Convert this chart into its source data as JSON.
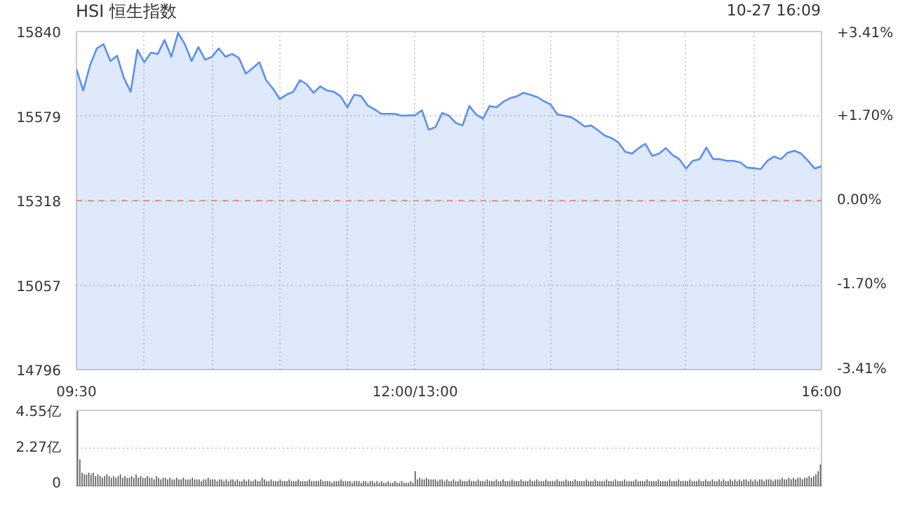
{
  "chart_data": [
    {
      "type": "area",
      "title": "HSI 恒生指数",
      "annotations": [
        "10-27 16:09"
      ],
      "categories": [
        "09:30",
        null,
        null,
        null,
        null,
        null,
        null,
        null,
        null,
        null,
        null,
        null,
        null,
        null,
        null,
        null,
        null,
        null,
        null,
        null,
        null,
        null,
        null,
        null,
        null,
        null,
        null,
        null,
        null,
        null,
        null,
        null,
        null,
        null,
        null,
        null,
        null,
        null,
        null,
        null,
        null,
        null,
        null,
        null,
        null,
        null,
        null,
        null,
        null,
        null,
        "12:00/13:00",
        null,
        null,
        null,
        null,
        null,
        null,
        null,
        null,
        null,
        null,
        null,
        null,
        null,
        null,
        null,
        null,
        null,
        null,
        null,
        null,
        null,
        null,
        null,
        null,
        null,
        null,
        null,
        null,
        null,
        null,
        null,
        null,
        null,
        null,
        null,
        null,
        null,
        null,
        null,
        null,
        null,
        null,
        null,
        null,
        null,
        null,
        null,
        null,
        null,
        null,
        null,
        null,
        null,
        null,
        null,
        null,
        null,
        null,
        null,
        "16:00"
      ],
      "series": [
        {
          "color": "#5b8ff0",
          "values": [
            15723,
            15658,
            15736,
            15788,
            15801,
            15749,
            15765,
            15697,
            15654,
            15784,
            15745,
            15775,
            15771,
            15814,
            15762,
            15836,
            15801,
            15749,
            15792,
            15753,
            15762,
            15788,
            15762,
            15771,
            15758,
            15710,
            15727,
            15745,
            15690,
            15664,
            15632,
            15645,
            15654,
            15690,
            15677,
            15651,
            15671,
            15658,
            15654,
            15640,
            15606,
            15645,
            15641,
            15612,
            15600,
            15586,
            15586,
            15586,
            15580,
            15581,
            15582,
            15597,
            15537,
            15545,
            15589,
            15580,
            15558,
            15550,
            15610,
            15584,
            15571,
            15610,
            15606,
            15623,
            15634,
            15640,
            15651,
            15645,
            15638,
            15625,
            15615,
            15584,
            15580,
            15576,
            15563,
            15547,
            15550,
            15535,
            15519,
            15511,
            15498,
            15469,
            15463,
            15480,
            15493,
            15456,
            15463,
            15480,
            15459,
            15446,
            15417,
            15441,
            15446,
            15482,
            15446,
            15446,
            15441,
            15441,
            15436,
            15420,
            15418,
            15415,
            15441,
            15454,
            15446,
            15466,
            15472,
            15463,
            15441,
            15417,
            15424
          ]
        }
      ],
      "ylim": [
        14796,
        15840
      ],
      "yticks": [
        14796,
        15057,
        15318,
        15579,
        15840
      ],
      "y2lim": [
        -3.41,
        3.41
      ],
      "y2ticks": [
        {
          "value": -3.41,
          "label": "-3.41%"
        },
        {
          "value": -1.7,
          "label": "-1.70%"
        },
        {
          "value": 0,
          "label": "0.00%"
        },
        {
          "value": 1.7,
          "label": "+1.70%"
        },
        {
          "value": 3.41,
          "label": "+3.41%"
        }
      ],
      "ref_lines": [
        {
          "axis": "y",
          "value": 15318,
          "color": "#e8967a",
          "line_style": "dashed"
        }
      ],
      "grid": true
    },
    {
      "type": "bar",
      "categories": [
        null,
        null,
        null,
        null,
        null,
        null,
        null,
        null,
        null,
        null,
        null,
        null,
        null,
        null,
        null,
        null,
        null,
        null,
        null,
        null,
        null,
        null,
        null,
        null,
        null,
        null,
        null,
        null,
        null,
        null,
        null,
        null,
        null,
        null,
        null,
        null,
        null,
        null,
        null,
        null,
        null,
        null,
        null,
        null,
        null,
        null,
        null,
        null,
        null,
        null,
        null,
        null,
        null,
        null,
        null,
        null,
        null,
        null,
        null,
        null,
        null,
        null,
        null,
        null,
        null,
        null,
        null,
        null,
        null,
        null,
        null,
        null,
        null,
        null,
        null,
        null,
        null,
        null,
        null,
        null,
        null,
        null,
        null,
        null,
        null,
        null,
        null,
        null,
        null,
        null,
        null,
        null,
        null,
        null,
        null,
        null,
        null,
        null,
        null,
        null,
        null,
        null,
        null,
        null,
        null,
        null,
        null,
        null,
        null,
        null,
        null,
        null,
        null,
        null,
        null,
        null,
        null,
        null,
        null,
        null,
        null,
        null,
        null,
        null,
        null,
        null,
        null,
        null,
        null,
        null,
        null,
        null,
        null,
        null,
        null,
        null,
        null,
        null,
        null,
        null,
        null,
        null,
        null,
        null,
        null,
        null,
        null,
        null,
        null,
        null,
        null,
        null,
        null,
        null,
        null,
        null,
        null,
        null,
        null,
        null,
        null,
        null,
        null,
        null,
        null,
        null,
        null,
        null,
        null,
        null,
        null,
        null,
        null,
        null,
        null,
        null,
        null,
        null,
        null,
        null,
        null,
        null,
        null,
        null,
        null,
        null,
        null,
        null,
        null,
        null,
        null,
        null,
        null,
        null,
        null,
        null,
        null,
        null,
        null,
        null,
        null,
        null,
        null,
        null,
        null,
        null,
        null,
        null,
        null,
        null,
        null,
        null,
        null,
        null,
        null,
        null,
        null,
        null,
        null,
        null,
        null,
        null,
        null,
        null,
        null,
        null,
        null,
        null,
        null,
        null,
        null,
        null,
        null,
        null,
        null,
        null,
        null,
        null,
        null,
        null,
        null,
        null,
        null,
        null,
        null,
        null,
        null,
        null,
        null,
        null,
        null,
        null,
        null,
        null,
        null,
        null,
        null,
        null,
        null,
        null,
        null,
        null,
        null,
        null,
        null,
        null,
        null,
        null,
        null,
        null,
        null,
        null,
        null,
        null,
        null,
        null,
        null,
        null,
        null,
        null,
        null,
        null,
        null,
        null,
        null,
        null,
        null,
        null,
        null,
        null,
        null,
        null,
        null,
        null,
        null,
        null,
        null,
        null,
        null,
        null,
        null,
        null,
        null,
        null,
        null,
        null,
        null,
        null,
        null,
        null,
        null,
        null,
        null,
        null,
        null,
        null,
        null,
        null,
        null,
        null,
        null,
        null,
        null,
        null,
        null,
        null,
        null,
        null,
        null,
        null,
        null
      ],
      "series": [
        {
          "color": "#555555",
          "values": [
            4.5,
            1.6,
            0.8,
            0.7,
            0.7,
            0.8,
            0.7,
            0.8,
            0.6,
            0.7,
            0.6,
            0.5,
            0.6,
            0.7,
            0.6,
            0.5,
            0.6,
            0.5,
            0.6,
            0.7,
            0.5,
            0.6,
            0.5,
            0.5,
            0.6,
            0.5,
            0.7,
            0.5,
            0.6,
            0.5,
            0.5,
            0.6,
            0.5,
            0.5,
            0.4,
            0.6,
            0.5,
            0.4,
            0.5,
            0.5,
            0.4,
            0.5,
            0.4,
            0.4,
            0.5,
            0.4,
            0.4,
            0.5,
            0.4,
            0.4,
            0.4,
            0.5,
            0.4,
            0.4,
            0.4,
            0.3,
            0.4,
            0.4,
            0.5,
            0.4,
            0.4,
            0.4,
            0.3,
            0.4,
            0.4,
            0.3,
            0.4,
            0.3,
            0.4,
            0.4,
            0.3,
            0.4,
            0.3,
            0.3,
            0.4,
            0.3,
            0.4,
            0.3,
            0.3,
            0.4,
            0.3,
            0.3,
            0.5,
            0.4,
            0.3,
            0.3,
            0.4,
            0.3,
            0.3,
            0.3,
            0.4,
            0.3,
            0.3,
            0.3,
            0.4,
            0.3,
            0.3,
            0.3,
            0.4,
            0.3,
            0.3,
            0.3,
            0.3,
            0.4,
            0.3,
            0.3,
            0.3,
            0.3,
            0.4,
            0.3,
            0.3,
            0.3,
            0.3,
            0.2,
            0.3,
            0.3,
            0.3,
            0.4,
            0.3,
            0.3,
            0.3,
            0.3,
            0.2,
            0.3,
            0.3,
            0.3,
            0.2,
            0.3,
            0.3,
            0.2,
            0.3,
            0.3,
            0.2,
            0.3,
            0.2,
            0.3,
            0.2,
            0.2,
            0.3,
            0.2,
            0.2,
            0.3,
            0.2,
            0.2,
            0.3,
            0.2,
            0.2,
            0.2,
            0.3,
            0.2,
            0.9,
            0.4,
            0.5,
            0.4,
            0.4,
            0.5,
            0.4,
            0.4,
            0.4,
            0.4,
            0.3,
            0.4,
            0.4,
            0.3,
            0.4,
            0.3,
            0.3,
            0.4,
            0.3,
            0.3,
            0.4,
            0.3,
            0.3,
            0.3,
            0.4,
            0.3,
            0.3,
            0.3,
            0.4,
            0.3,
            0.3,
            0.3,
            0.4,
            0.3,
            0.3,
            0.3,
            0.4,
            0.3,
            0.3,
            0.4,
            0.3,
            0.3,
            0.3,
            0.4,
            0.3,
            0.3,
            0.3,
            0.4,
            0.3,
            0.3,
            0.3,
            0.4,
            0.3,
            0.3,
            0.4,
            0.3,
            0.3,
            0.3,
            0.4,
            0.3,
            0.3,
            0.3,
            0.3,
            0.4,
            0.3,
            0.3,
            0.3,
            0.4,
            0.3,
            0.3,
            0.3,
            0.4,
            0.3,
            0.3,
            0.3,
            0.3,
            0.4,
            0.3,
            0.3,
            0.3,
            0.4,
            0.3,
            0.3,
            0.3,
            0.3,
            0.4,
            0.3,
            0.3,
            0.3,
            0.4,
            0.3,
            0.3,
            0.3,
            0.4,
            0.3,
            0.3,
            0.3,
            0.3,
            0.4,
            0.3,
            0.3,
            0.3,
            0.3,
            0.4,
            0.3,
            0.3,
            0.3,
            0.3,
            0.4,
            0.3,
            0.3,
            0.3,
            0.3,
            0.4,
            0.3,
            0.3,
            0.3,
            0.4,
            0.3,
            0.3,
            0.3,
            0.3,
            0.4,
            0.3,
            0.3,
            0.3,
            0.4,
            0.3,
            0.3,
            0.4,
            0.3,
            0.3,
            0.4,
            0.3,
            0.3,
            0.4,
            0.3,
            0.4,
            0.3,
            0.3,
            0.4,
            0.3,
            0.4,
            0.3,
            0.4,
            0.3,
            0.4,
            0.4,
            0.3,
            0.4,
            0.3,
            0.4,
            0.3,
            0.4,
            0.4,
            0.3,
            0.4,
            0.4,
            0.4,
            0.3,
            0.4,
            0.4,
            0.4,
            0.5,
            0.4,
            0.4,
            0.5,
            0.4,
            0.5,
            0.4,
            0.5,
            0.5,
            0.4,
            0.5,
            0.5,
            0.6,
            0.5,
            0.6,
            0.7,
            0.9,
            1.3
          ]
        }
      ],
      "ylim": [
        0,
        4.55
      ],
      "yticks": [
        0,
        {
          "value": 2.27,
          "label": "2.27亿"
        },
        {
          "value": 4.55,
          "label": "4.55亿"
        }
      ],
      "tick_labels": "y",
      "grid": "y"
    }
  ]
}
